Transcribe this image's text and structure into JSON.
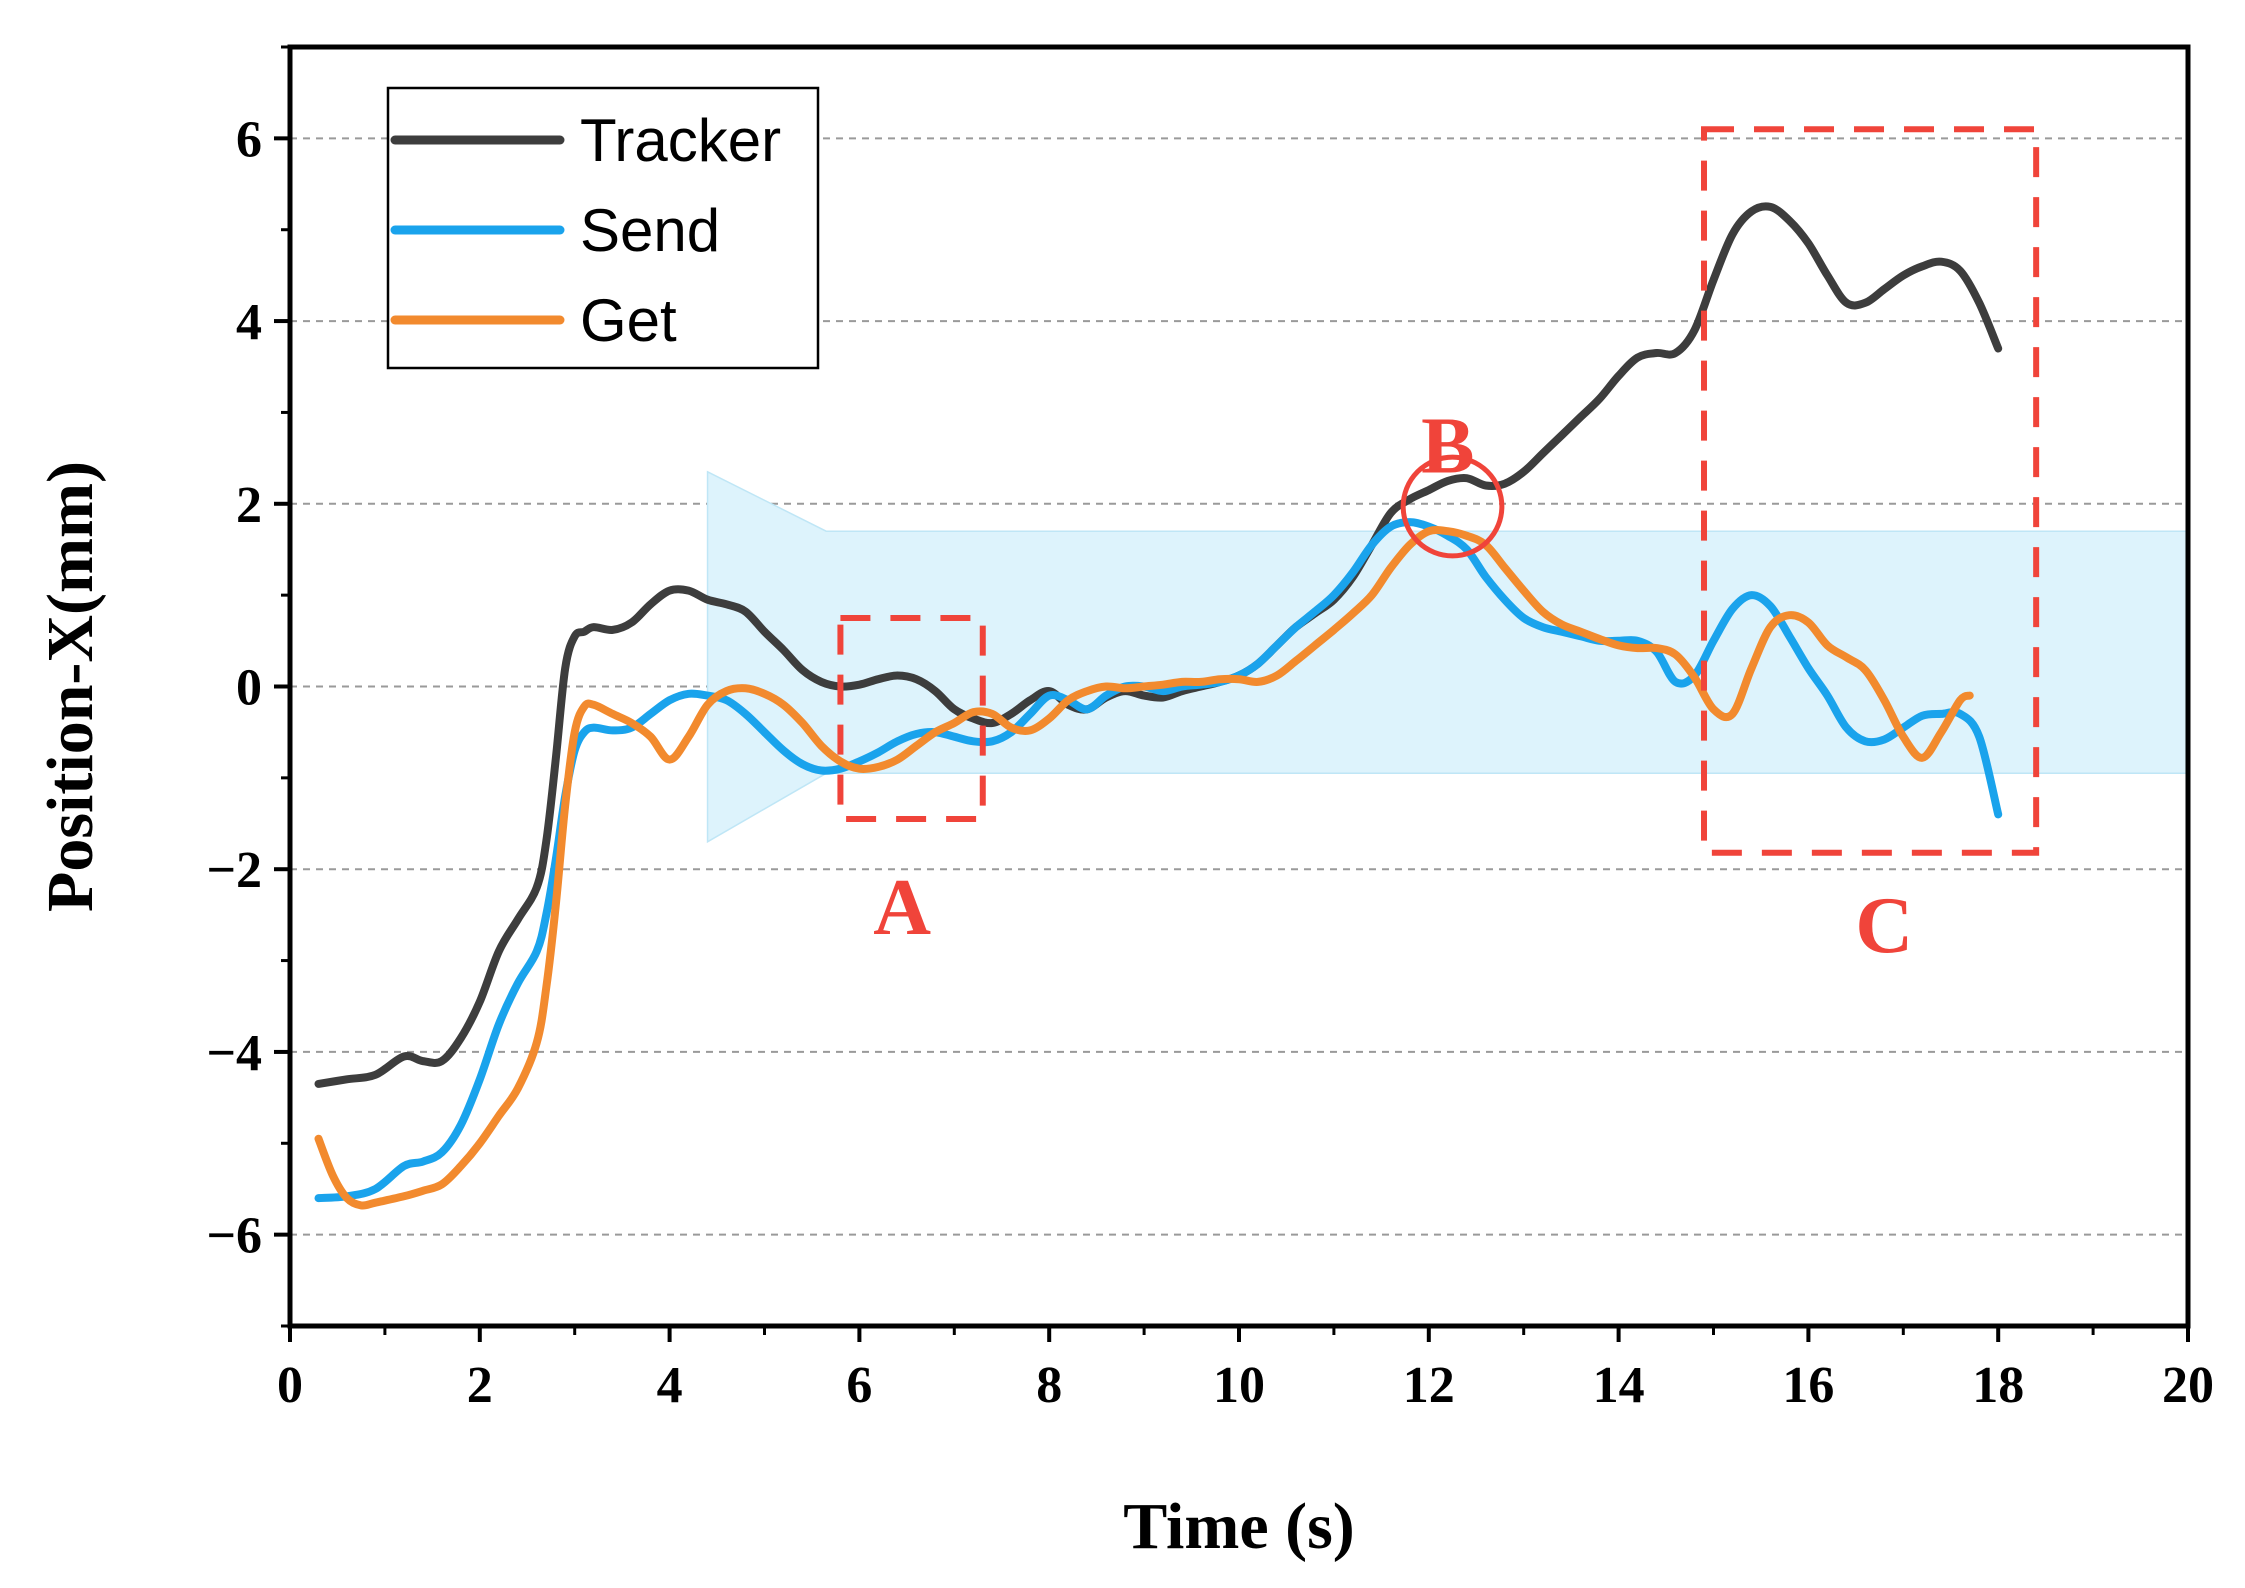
{
  "chart_data": {
    "type": "line",
    "title": "",
    "xlabel": "Time (s)",
    "ylabel": "Position-X(mm)",
    "xlim": [
      0,
      20
    ],
    "ylim": [
      -7,
      7
    ],
    "xticks": [
      0,
      2,
      4,
      6,
      8,
      10,
      12,
      14,
      16,
      18,
      20
    ],
    "yticks": [
      -6,
      -4,
      -2,
      0,
      2,
      4,
      6
    ],
    "ytick_labels": [
      "−6",
      "−4",
      "−2",
      "0",
      "2",
      "4",
      "6"
    ],
    "grid": "horizontal dashed",
    "legend_position": "top-left",
    "series": [
      {
        "name": "Tracker",
        "color": "#3d3d3d",
        "x": [
          0.3,
          0.6,
          0.9,
          1.2,
          1.4,
          1.6,
          1.8,
          2.0,
          2.2,
          2.4,
          2.6,
          2.7,
          2.8,
          2.9,
          3.0,
          3.1,
          3.2,
          3.4,
          3.6,
          3.8,
          4.0,
          4.2,
          4.4,
          4.6,
          4.8,
          5.0,
          5.2,
          5.4,
          5.6,
          5.8,
          6.0,
          6.2,
          6.4,
          6.6,
          6.8,
          7.0,
          7.2,
          7.4,
          7.6,
          7.8,
          8.0,
          8.2,
          8.4,
          8.6,
          8.8,
          9.0,
          9.2,
          9.4,
          9.6,
          9.8,
          10.0,
          10.2,
          10.4,
          10.6,
          10.8,
          11.0,
          11.2,
          11.4,
          11.6,
          11.8,
          12.0,
          12.2,
          12.4,
          12.6,
          12.8,
          13.0,
          13.2,
          13.4,
          13.6,
          13.8,
          14.0,
          14.2,
          14.4,
          14.6,
          14.8,
          15.0,
          15.2,
          15.4,
          15.6,
          15.8,
          16.0,
          16.2,
          16.4,
          16.6,
          16.8,
          17.0,
          17.2,
          17.4,
          17.6,
          17.8,
          18.0
        ],
        "y": [
          -4.35,
          -4.3,
          -4.25,
          -4.05,
          -4.1,
          -4.1,
          -3.85,
          -3.45,
          -2.9,
          -2.55,
          -2.2,
          -1.7,
          -0.8,
          0.2,
          0.55,
          0.6,
          0.65,
          0.62,
          0.7,
          0.9,
          1.05,
          1.05,
          0.95,
          0.9,
          0.82,
          0.6,
          0.4,
          0.18,
          0.05,
          0.0,
          0.02,
          0.08,
          0.12,
          0.08,
          -0.05,
          -0.25,
          -0.35,
          -0.4,
          -0.3,
          -0.15,
          -0.05,
          -0.2,
          -0.25,
          -0.12,
          -0.05,
          -0.1,
          -0.12,
          -0.05,
          0.0,
          0.05,
          0.12,
          0.25,
          0.45,
          0.65,
          0.8,
          0.95,
          1.2,
          1.55,
          1.9,
          2.05,
          2.15,
          2.25,
          2.28,
          2.2,
          2.22,
          2.35,
          2.55,
          2.75,
          2.95,
          3.15,
          3.4,
          3.6,
          3.65,
          3.65,
          3.9,
          4.45,
          4.95,
          5.2,
          5.25,
          5.1,
          4.85,
          4.5,
          4.2,
          4.2,
          4.35,
          4.5,
          4.6,
          4.65,
          4.55,
          4.2,
          3.7
        ]
      },
      {
        "name": "Send",
        "color": "#1aa3ec",
        "x": [
          0.3,
          0.6,
          0.9,
          1.2,
          1.4,
          1.6,
          1.8,
          2.0,
          2.2,
          2.4,
          2.6,
          2.7,
          2.8,
          2.9,
          3.0,
          3.1,
          3.2,
          3.4,
          3.6,
          3.8,
          4.0,
          4.2,
          4.4,
          4.6,
          4.8,
          5.0,
          5.2,
          5.4,
          5.6,
          5.8,
          6.0,
          6.2,
          6.4,
          6.6,
          6.8,
          7.0,
          7.2,
          7.4,
          7.6,
          7.8,
          8.0,
          8.2,
          8.4,
          8.6,
          8.8,
          9.0,
          9.2,
          9.4,
          9.6,
          9.8,
          10.0,
          10.2,
          10.4,
          10.6,
          10.8,
          11.0,
          11.2,
          11.4,
          11.6,
          11.8,
          12.0,
          12.2,
          12.4,
          12.6,
          12.8,
          13.0,
          13.2,
          13.4,
          13.6,
          13.8,
          14.0,
          14.2,
          14.4,
          14.6,
          14.8,
          15.0,
          15.2,
          15.4,
          15.6,
          15.8,
          16.0,
          16.2,
          16.4,
          16.6,
          16.8,
          17.0,
          17.2,
          17.4,
          17.6,
          17.8,
          18.0
        ],
        "y": [
          -5.6,
          -5.58,
          -5.5,
          -5.25,
          -5.2,
          -5.1,
          -4.8,
          -4.3,
          -3.7,
          -3.25,
          -2.9,
          -2.5,
          -1.9,
          -1.2,
          -0.7,
          -0.5,
          -0.45,
          -0.48,
          -0.45,
          -0.3,
          -0.15,
          -0.08,
          -0.1,
          -0.15,
          -0.3,
          -0.5,
          -0.7,
          -0.85,
          -0.92,
          -0.9,
          -0.82,
          -0.72,
          -0.6,
          -0.52,
          -0.5,
          -0.55,
          -0.6,
          -0.6,
          -0.5,
          -0.3,
          -0.1,
          -0.15,
          -0.25,
          -0.1,
          0.0,
          0.0,
          -0.05,
          0.0,
          0.02,
          0.05,
          0.12,
          0.25,
          0.45,
          0.65,
          0.82,
          1.0,
          1.25,
          1.55,
          1.75,
          1.8,
          1.75,
          1.65,
          1.5,
          1.2,
          0.95,
          0.75,
          0.65,
          0.6,
          0.55,
          0.5,
          0.5,
          0.5,
          0.38,
          0.05,
          0.12,
          0.5,
          0.85,
          1.0,
          0.88,
          0.55,
          0.2,
          -0.1,
          -0.45,
          -0.6,
          -0.58,
          -0.45,
          -0.32,
          -0.3,
          -0.3,
          -0.55,
          -1.4
        ]
      },
      {
        "name": "Get",
        "color": "#f28a2e",
        "x": [
          0.3,
          0.45,
          0.6,
          0.75,
          0.9,
          1.2,
          1.4,
          1.6,
          1.8,
          2.0,
          2.2,
          2.4,
          2.6,
          2.7,
          2.8,
          2.9,
          3.0,
          3.1,
          3.2,
          3.4,
          3.6,
          3.8,
          4.0,
          4.2,
          4.4,
          4.6,
          4.8,
          5.0,
          5.2,
          5.4,
          5.6,
          5.8,
          6.0,
          6.2,
          6.4,
          6.6,
          6.8,
          7.0,
          7.2,
          7.4,
          7.6,
          7.8,
          8.0,
          8.2,
          8.4,
          8.6,
          8.8,
          9.0,
          9.2,
          9.4,
          9.6,
          9.8,
          10.0,
          10.2,
          10.4,
          10.6,
          10.8,
          11.0,
          11.2,
          11.4,
          11.6,
          11.8,
          12.0,
          12.2,
          12.4,
          12.6,
          12.8,
          13.0,
          13.2,
          13.4,
          13.6,
          13.8,
          14.0,
          14.2,
          14.4,
          14.6,
          14.8,
          15.0,
          15.2,
          15.4,
          15.6,
          15.8,
          16.0,
          16.2,
          16.4,
          16.6,
          16.8,
          17.0,
          17.2,
          17.4,
          17.6,
          17.7
        ],
        "y": [
          -4.95,
          -5.35,
          -5.6,
          -5.68,
          -5.65,
          -5.58,
          -5.52,
          -5.45,
          -5.25,
          -5.0,
          -4.7,
          -4.4,
          -3.9,
          -3.3,
          -2.4,
          -1.3,
          -0.5,
          -0.22,
          -0.2,
          -0.3,
          -0.4,
          -0.55,
          -0.8,
          -0.55,
          -0.2,
          -0.05,
          -0.02,
          -0.08,
          -0.2,
          -0.4,
          -0.65,
          -0.82,
          -0.9,
          -0.88,
          -0.8,
          -0.65,
          -0.5,
          -0.4,
          -0.28,
          -0.3,
          -0.45,
          -0.48,
          -0.35,
          -0.15,
          -0.05,
          0.0,
          -0.02,
          0.0,
          0.02,
          0.05,
          0.05,
          0.08,
          0.08,
          0.05,
          0.12,
          0.28,
          0.45,
          0.62,
          0.8,
          1.0,
          1.3,
          1.55,
          1.7,
          1.7,
          1.65,
          1.55,
          1.3,
          1.05,
          0.82,
          0.68,
          0.6,
          0.52,
          0.45,
          0.42,
          0.42,
          0.35,
          0.1,
          -0.25,
          -0.3,
          0.2,
          0.65,
          0.78,
          0.7,
          0.45,
          0.32,
          0.18,
          -0.15,
          -0.55,
          -0.78,
          -0.5,
          -0.15,
          -0.1
        ]
      }
    ],
    "shaded_band": {
      "color": "#ddf3fc",
      "arrow_from_x": 4.4,
      "arrow_to_x": 5.65,
      "arrow_ymin": -1.7,
      "arrow_ymax": 2.35,
      "band_xmax": 20.0,
      "band_ymin": -0.95,
      "band_ymax": 1.7
    },
    "annotations": [
      {
        "label": "A",
        "shape": "dashed-rectangle",
        "color": "#f0443a",
        "x0": 5.8,
        "x1": 7.3,
        "y0": -1.45,
        "y1": 0.75,
        "label_x": 6.45,
        "label_y": -2.4
      },
      {
        "label": "B",
        "shape": "circle",
        "color": "#f0443a",
        "cx": 12.25,
        "cy": 1.97,
        "radius_x_units": 0.52,
        "label_x": 12.2,
        "label_y": 2.65
      },
      {
        "label": "C",
        "shape": "dashed-rectangle",
        "color": "#f0443a",
        "x0": 14.9,
        "x1": 18.4,
        "y0": -1.82,
        "y1": 6.1,
        "label_x": 16.8,
        "label_y": -2.6
      }
    ]
  }
}
